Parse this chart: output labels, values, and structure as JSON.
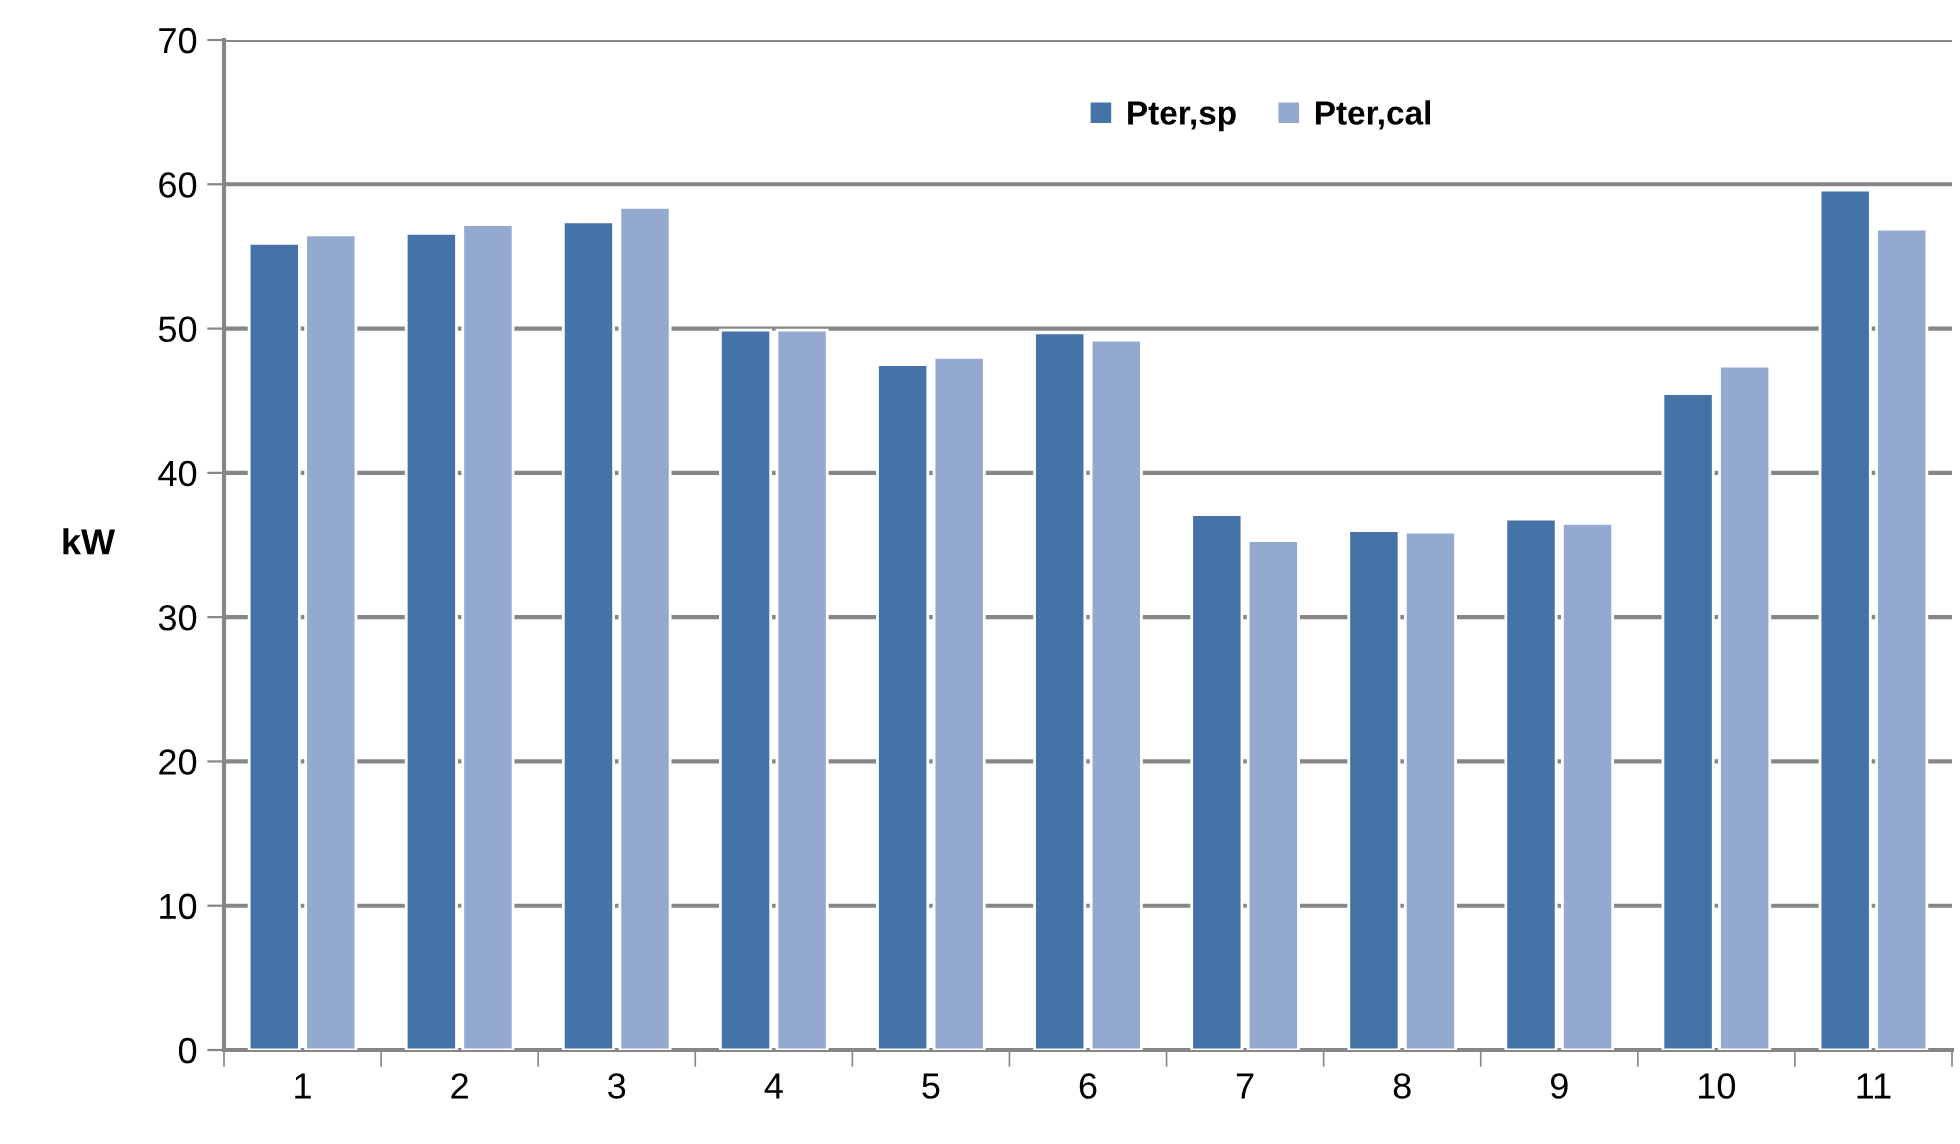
{
  "chart_data": {
    "type": "bar",
    "ylabel": "kW",
    "categories": [
      "1",
      "2",
      "3",
      "4",
      "5",
      "6",
      "7",
      "8",
      "9",
      "10",
      "11"
    ],
    "series": [
      {
        "name": "Pter,sp",
        "color": "#4572a7",
        "values": [
          55.9,
          56.6,
          57.4,
          49.9,
          47.5,
          49.7,
          37.1,
          36.0,
          36.8,
          45.5,
          59.6
        ]
      },
      {
        "name": "Pter,cal",
        "color": "#94a9cf",
        "values": [
          56.5,
          57.2,
          58.4,
          49.9,
          48.0,
          49.2,
          35.3,
          35.9,
          36.5,
          47.4,
          56.9
        ]
      }
    ],
    "ylim": [
      0,
      70
    ],
    "yticks": [
      0,
      10,
      20,
      30,
      40,
      50,
      60,
      70
    ],
    "grid": "y",
    "legend": "top right"
  }
}
